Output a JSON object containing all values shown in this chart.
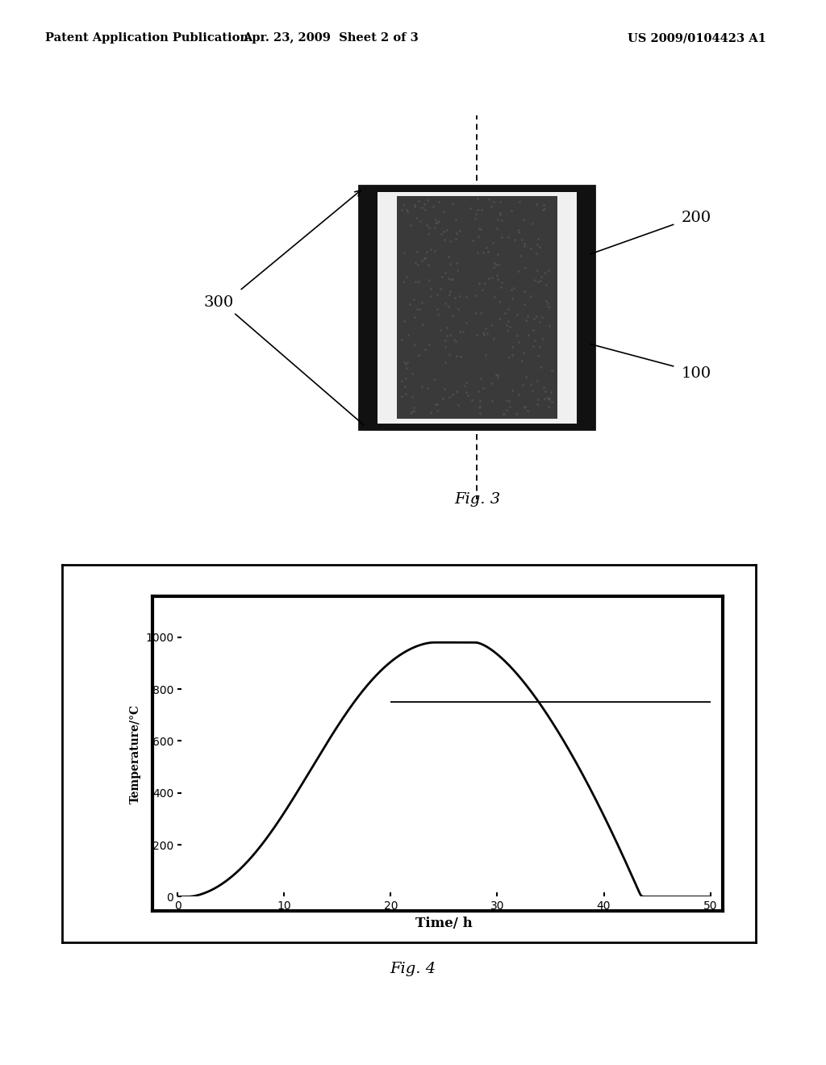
{
  "header_left": "Patent Application Publication",
  "header_mid": "Apr. 23, 2009  Sheet 2 of 3",
  "header_right": "US 2009/0104423 A1",
  "fig3_label": "Fig. 3",
  "fig4_label": "Fig. 4",
  "graph": {
    "xlabel": "Time/ h",
    "ylabel": "Temperature/°C",
    "xlim": [
      0,
      50
    ],
    "ylim": [
      0,
      1100
    ],
    "yticks": [
      0,
      200,
      400,
      600,
      800,
      1000
    ],
    "xticks": [
      0,
      10,
      20,
      30,
      40,
      50
    ],
    "hline_y": 750,
    "hline_x_start": 20,
    "hline_x_end": 50
  },
  "bg_color": "#ffffff"
}
